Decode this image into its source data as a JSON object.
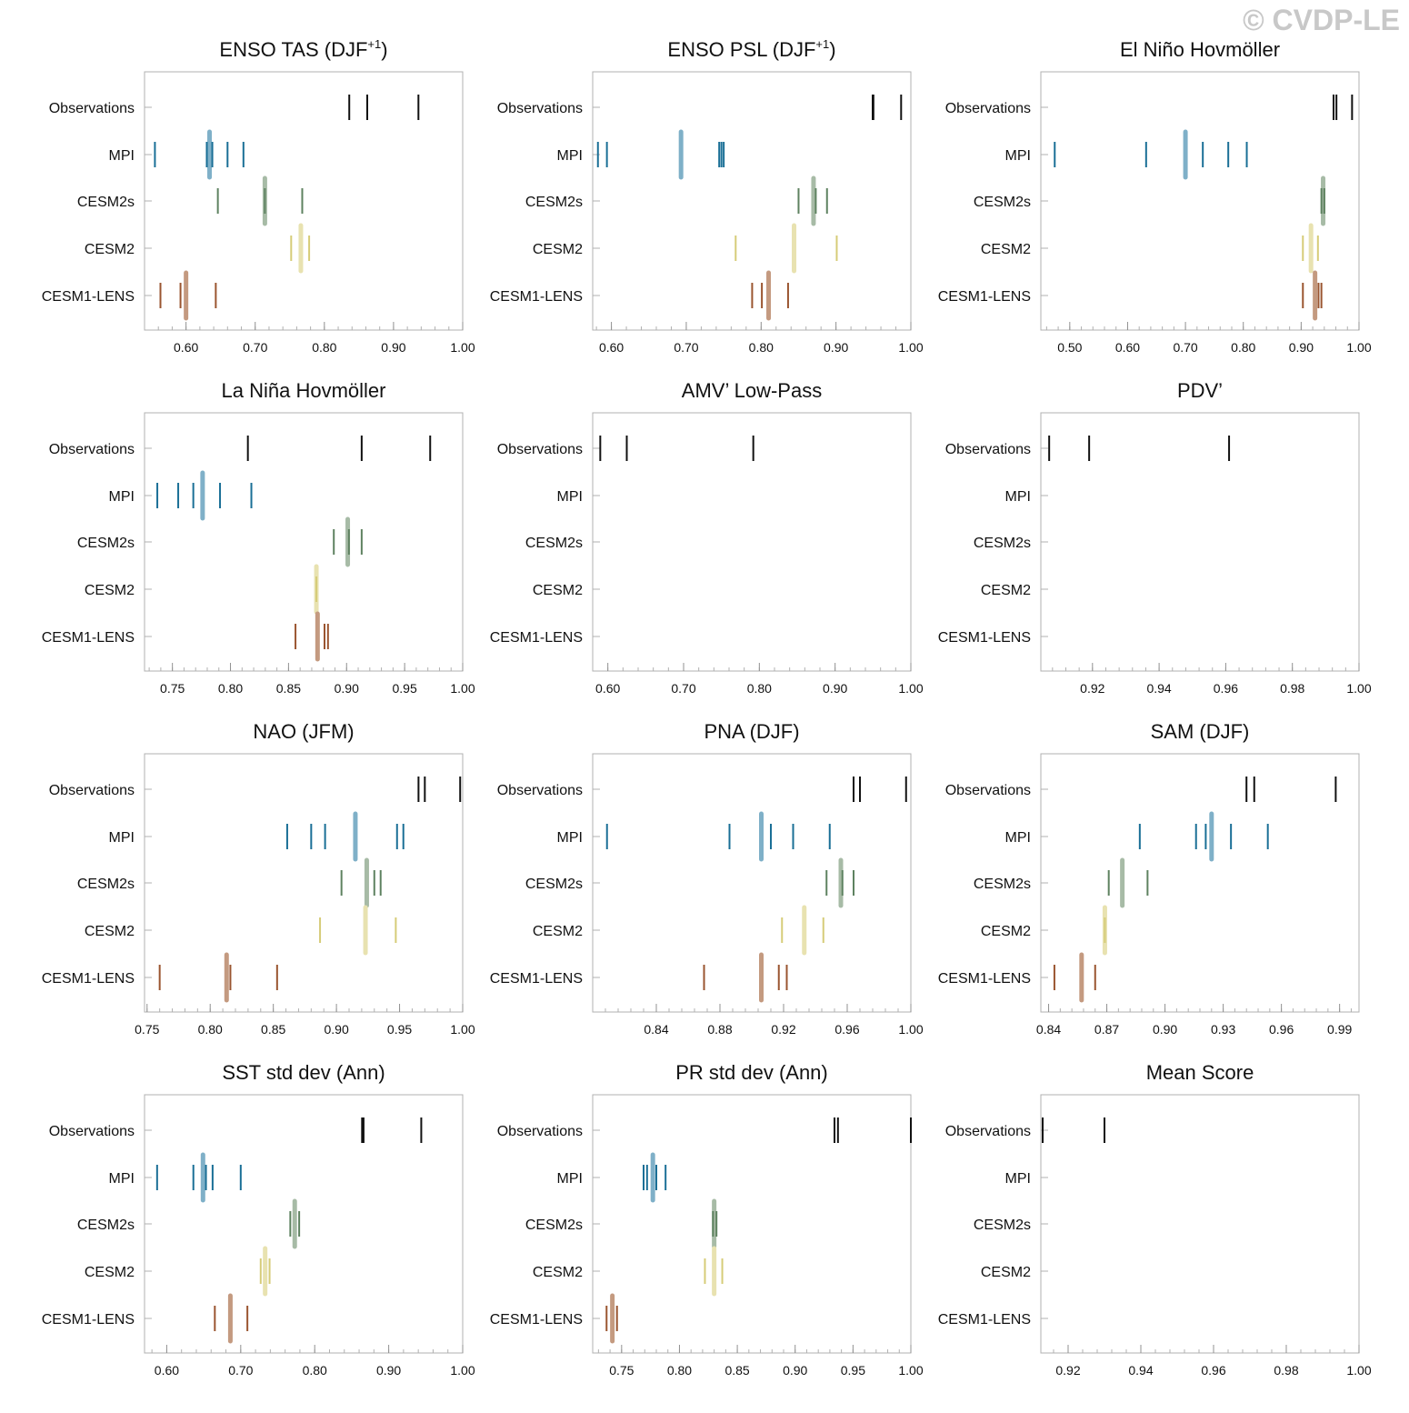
{
  "watermark": "© CVDP-LE",
  "row_labels": [
    "Observations",
    "MPI",
    "CESM2s",
    "CESM2",
    "CESM1-LENS"
  ],
  "colors": {
    "Observations": "#111111",
    "MPI": "#1a6f96",
    "CESM2s": "#5e8260",
    "CESM2": "#d6cc78",
    "CESM1-LENS": "#9a5530",
    "MPI_mean": "#7fb0c8",
    "CESM2s_mean": "#a7bba6",
    "CESM2_mean": "#e8e2b0",
    "CESM1-LENS_mean": "#c49a80"
  },
  "chart_data": [
    {
      "type": "scatter",
      "title": "ENSO TAS (DJF",
      "title_sup": "+1",
      "title_end": ")",
      "xlim": [
        0.54,
        1.0
      ],
      "xticks": [
        0.6,
        0.7,
        0.8,
        0.9,
        1.0
      ],
      "xticklabels": [
        "0.60",
        "0.70",
        "0.80",
        "0.90",
        "1.00"
      ],
      "series": {
        "Observations": [
          0.836,
          0.862,
          0.936
        ],
        "MPI": [
          0.555,
          0.63,
          0.638,
          0.66,
          0.683
        ],
        "CESM2s": [
          0.646,
          0.714,
          0.768
        ],
        "CESM2": [
          0.752,
          0.778
        ],
        "CESM1-LENS": [
          0.563,
          0.592,
          0.643
        ]
      },
      "means": {
        "MPI": 0.634,
        "CESM2s": 0.714,
        "CESM2": 0.766,
        "CESM1-LENS": 0.6
      }
    },
    {
      "type": "scatter",
      "title": "ENSO PSL (DJF",
      "title_sup": "+1",
      "title_end": ")",
      "xlim": [
        0.575,
        1.0
      ],
      "xticks": [
        0.6,
        0.7,
        0.8,
        0.9,
        1.0
      ],
      "xticklabels": [
        "0.60",
        "0.70",
        "0.80",
        "0.90",
        "1.00"
      ],
      "series": {
        "Observations": [
          0.949,
          0.95,
          0.987
        ],
        "MPI": [
          0.582,
          0.594,
          0.744,
          0.747,
          0.75
        ],
        "CESM2s": [
          0.85,
          0.873,
          0.888
        ],
        "CESM2": [
          0.766,
          0.901
        ],
        "CESM1-LENS": [
          0.788,
          0.801,
          0.836
        ]
      },
      "means": {
        "MPI": 0.693,
        "CESM2s": 0.87,
        "CESM2": 0.844,
        "CESM1-LENS": 0.81
      }
    },
    {
      "type": "scatter",
      "title": "El Niño Hovmöller",
      "xlim": [
        0.45,
        1.0
      ],
      "xticks": [
        0.5,
        0.6,
        0.7,
        0.8,
        0.9,
        1.0
      ],
      "xticklabels": [
        "0.50",
        "0.60",
        "0.70",
        "0.80",
        "0.90",
        "1.00"
      ],
      "series": {
        "Observations": [
          0.956,
          0.961,
          0.988
        ],
        "MPI": [
          0.474,
          0.632,
          0.73,
          0.774,
          0.806
        ],
        "CESM2s": [
          0.935,
          0.94
        ],
        "CESM2": [
          0.903,
          0.929
        ],
        "CESM1-LENS": [
          0.903,
          0.93,
          0.935
        ]
      },
      "means": {
        "MPI": 0.7,
        "CESM2s": 0.938,
        "CESM2": 0.917,
        "CESM1-LENS": 0.924
      }
    },
    {
      "type": "scatter",
      "title": "La Niña Hovmöller",
      "xlim": [
        0.726,
        1.0
      ],
      "xticks": [
        0.75,
        0.8,
        0.85,
        0.9,
        0.95,
        1.0
      ],
      "xticklabels": [
        "0.75",
        "0.80",
        "0.85",
        "0.90",
        "0.95",
        "1.00"
      ],
      "series": {
        "Observations": [
          0.815,
          0.913,
          0.972
        ],
        "MPI": [
          0.737,
          0.755,
          0.768,
          0.791,
          0.818
        ],
        "CESM2s": [
          0.889,
          0.902,
          0.913
        ],
        "CESM2": [
          0.874
        ],
        "CESM1-LENS": [
          0.856,
          0.881,
          0.884
        ]
      },
      "means": {
        "MPI": 0.776,
        "CESM2s": 0.901,
        "CESM2": 0.874,
        "CESM1-LENS": 0.875
      }
    },
    {
      "type": "scatter",
      "title": "AMV’ Low-Pass",
      "xlim": [
        0.58,
        1.0
      ],
      "xticks": [
        0.6,
        0.7,
        0.8,
        0.9,
        1.0
      ],
      "xticklabels": [
        "0.60",
        "0.70",
        "0.80",
        "0.90",
        "1.00"
      ],
      "series": {
        "Observations": [
          0.59,
          0.625,
          0.792
        ],
        "MPI": [],
        "CESM2s": [],
        "CESM2": [],
        "CESM1-LENS": []
      },
      "means": {}
    },
    {
      "type": "scatter",
      "title": "PDV’",
      "xlim": [
        0.9045,
        1.0
      ],
      "xticks": [
        0.92,
        0.94,
        0.96,
        0.98,
        1.0
      ],
      "xticklabels": [
        "0.92",
        "0.94",
        "0.96",
        "0.98",
        "1.00"
      ],
      "series": {
        "Observations": [
          0.907,
          0.919,
          0.961
        ],
        "MPI": [],
        "CESM2s": [],
        "CESM2": [],
        "CESM1-LENS": []
      },
      "means": {}
    },
    {
      "type": "scatter",
      "title": "NAO (JFM)",
      "xlim": [
        0.748,
        1.0
      ],
      "xticks": [
        0.75,
        0.8,
        0.85,
        0.9,
        0.95,
        1.0
      ],
      "xticklabels": [
        "0.75",
        "0.80",
        "0.85",
        "0.90",
        "0.95",
        "1.00"
      ],
      "series": {
        "Observations": [
          0.965,
          0.97,
          0.998
        ],
        "MPI": [
          0.861,
          0.88,
          0.891,
          0.948,
          0.953
        ],
        "CESM2s": [
          0.904,
          0.93,
          0.935
        ],
        "CESM2": [
          0.887,
          0.947
        ],
        "CESM1-LENS": [
          0.76,
          0.816,
          0.853
        ]
      },
      "means": {
        "MPI": 0.915,
        "CESM2s": 0.924,
        "CESM2": 0.923,
        "CESM1-LENS": 0.813
      }
    },
    {
      "type": "scatter",
      "title": "PNA (DJF)",
      "xlim": [
        0.8,
        1.0
      ],
      "xticks": [
        0.84,
        0.88,
        0.92,
        0.96,
        1.0
      ],
      "xticklabels": [
        "0.84",
        "0.88",
        "0.92",
        "0.96",
        "1.00"
      ],
      "series": {
        "Observations": [
          0.964,
          0.968,
          0.997
        ],
        "MPI": [
          0.809,
          0.886,
          0.912,
          0.926,
          0.949
        ],
        "CESM2s": [
          0.947,
          0.957,
          0.964
        ],
        "CESM2": [
          0.919,
          0.945
        ],
        "CESM1-LENS": [
          0.87,
          0.917,
          0.922
        ]
      },
      "means": {
        "MPI": 0.906,
        "CESM2s": 0.956,
        "CESM2": 0.933,
        "CESM1-LENS": 0.906
      }
    },
    {
      "type": "scatter",
      "title": "SAM (DJF)",
      "xlim": [
        0.836,
        1.0
      ],
      "xticks": [
        0.84,
        0.87,
        0.9,
        0.93,
        0.96,
        0.99
      ],
      "xticklabels": [
        "0.84",
        "0.87",
        "0.90",
        "0.93",
        "0.96",
        "0.99"
      ],
      "series": {
        "Observations": [
          0.942,
          0.946,
          0.988
        ],
        "MPI": [
          0.887,
          0.916,
          0.921,
          0.934,
          0.953
        ],
        "CESM2s": [
          0.871,
          0.891
        ],
        "CESM2": [
          0.869
        ],
        "CESM1-LENS": [
          0.843,
          0.864
        ]
      },
      "means": {
        "MPI": 0.924,
        "CESM2s": 0.878,
        "CESM2": 0.869,
        "CESM1-LENS": 0.857
      }
    },
    {
      "type": "scatter",
      "title": "SST std dev (Ann)",
      "xlim": [
        0.57,
        1.0
      ],
      "xticks": [
        0.6,
        0.7,
        0.8,
        0.9,
        1.0
      ],
      "xticklabels": [
        "0.60",
        "0.70",
        "0.80",
        "0.90",
        "1.00"
      ],
      "series": {
        "Observations": [
          0.864,
          0.866,
          0.944
        ],
        "MPI": [
          0.587,
          0.636,
          0.653,
          0.662,
          0.7
        ],
        "CESM2s": [
          0.767,
          0.779
        ],
        "CESM2": [
          0.727,
          0.739
        ],
        "CESM1-LENS": [
          0.665,
          0.709
        ]
      },
      "means": {
        "MPI": 0.649,
        "CESM2s": 0.773,
        "CESM2": 0.733,
        "CESM1-LENS": 0.686
      }
    },
    {
      "type": "scatter",
      "title": "PR std dev (Ann)",
      "xlim": [
        0.725,
        1.0
      ],
      "xticks": [
        0.75,
        0.8,
        0.85,
        0.9,
        0.95,
        1.0
      ],
      "xticklabels": [
        "0.75",
        "0.80",
        "0.85",
        "0.90",
        "0.95",
        "1.00"
      ],
      "series": {
        "Observations": [
          0.934,
          0.937,
          1.0
        ],
        "MPI": [
          0.769,
          0.772,
          0.78,
          0.788
        ],
        "CESM2s": [
          0.829,
          0.832
        ],
        "CESM2": [
          0.822,
          0.837
        ],
        "CESM1-LENS": [
          0.737,
          0.746
        ]
      },
      "means": {
        "MPI": 0.777,
        "CESM2s": 0.83,
        "CESM2": 0.83,
        "CESM1-LENS": 0.742
      }
    },
    {
      "type": "scatter",
      "title": "Mean Score",
      "xlim": [
        0.9125,
        1.0
      ],
      "xticks": [
        0.92,
        0.94,
        0.96,
        0.98,
        1.0
      ],
      "xticklabels": [
        "0.92",
        "0.94",
        "0.96",
        "0.98",
        "1.00"
      ],
      "series": {
        "Observations": [
          0.913,
          0.93
        ],
        "MPI": [],
        "CESM2s": [],
        "CESM2": [],
        "CESM1-LENS": []
      },
      "means": {}
    }
  ]
}
